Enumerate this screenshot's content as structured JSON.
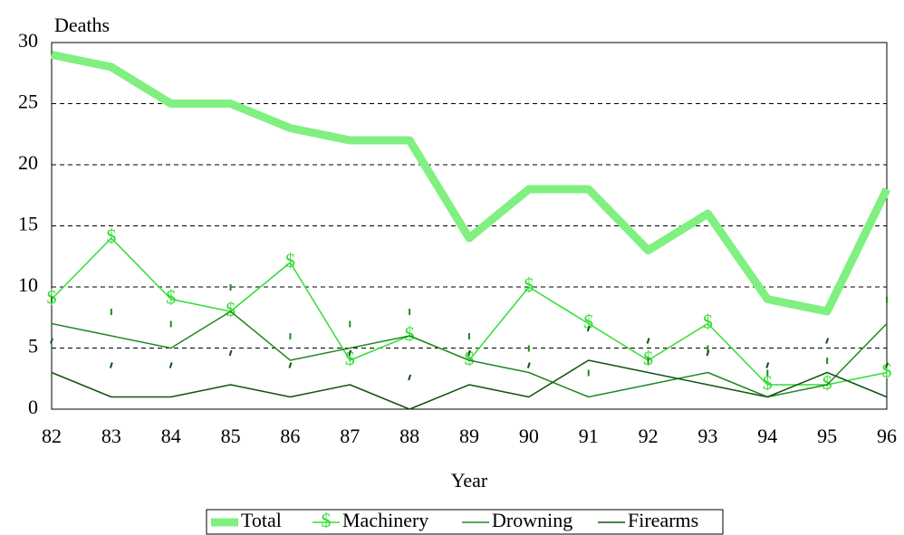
{
  "chart_data": {
    "type": "line",
    "title": "Deaths",
    "x_label": "Year",
    "categories": [
      "82",
      "83",
      "84",
      "85",
      "86",
      "87",
      "88",
      "89",
      "90",
      "91",
      "92",
      "93",
      "94",
      "95",
      "96"
    ],
    "series": [
      {
        "name": "Total",
        "color": "#80f080",
        "values": [
          29,
          28,
          25,
          25,
          23,
          22,
          22,
          14,
          18,
          18,
          13,
          16,
          9,
          8,
          18
        ]
      },
      {
        "name": "Machinery",
        "color": "#33dd33",
        "marker": "$",
        "values": [
          9,
          14,
          9,
          8,
          12,
          4,
          6,
          4,
          10,
          7,
          4,
          7,
          2,
          2,
          3
        ]
      },
      {
        "name": "Drowning",
        "color": "#228822",
        "values": [
          7,
          6,
          5,
          8,
          4,
          5,
          6,
          4,
          3,
          1,
          2,
          3,
          1,
          2,
          7
        ]
      },
      {
        "name": "Firearms",
        "color": "#115511",
        "values": [
          3,
          1,
          1,
          2,
          1,
          2,
          0,
          2,
          1,
          4,
          3,
          2,
          1,
          3,
          1
        ]
      }
    ],
    "ylim": [
      0,
      30
    ],
    "yticks": [
      0,
      5,
      10,
      15,
      20,
      25,
      30
    ],
    "grid": true
  }
}
